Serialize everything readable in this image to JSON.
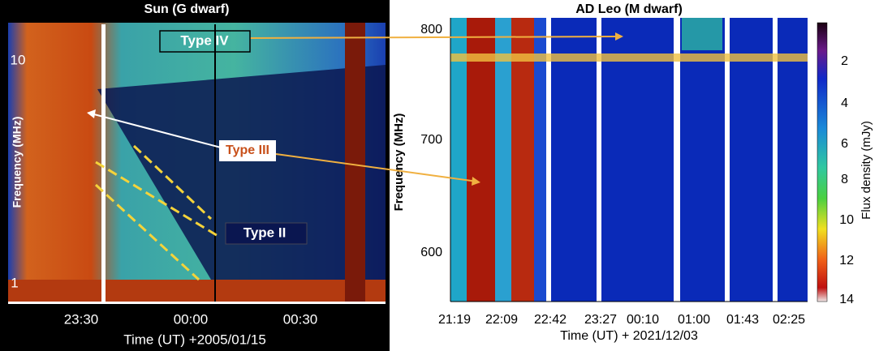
{
  "left_panel": {
    "title": "Sun (G dwarf)",
    "y_axis_label": "Frequency (MHz)",
    "y_tick_labels": [
      "10",
      "1"
    ],
    "x_tick_labels": [
      "23:30",
      "00:00",
      "00:30"
    ],
    "x_axis_label": "Time  (UT) +2005/01/15"
  },
  "right_panel": {
    "title": "AD Leo (M dwarf)",
    "y_axis_label": "Frequency (MHz)",
    "y_tick_labels": [
      "800",
      "700",
      "600"
    ],
    "x_tick_labels": [
      "21:19",
      "22:09",
      "22:42",
      "23:27",
      "00:10",
      "01:00",
      "01:43",
      "02:25"
    ],
    "x_axis_label": "Time (UT)  + 2021/12/03"
  },
  "colorbar": {
    "label": "Flux density (mJy)",
    "tick_labels": [
      "2",
      "4",
      "6",
      "8",
      "10",
      "12",
      "14"
    ]
  },
  "annotations": [
    "Type IV",
    "Type III",
    "Type II"
  ]
}
